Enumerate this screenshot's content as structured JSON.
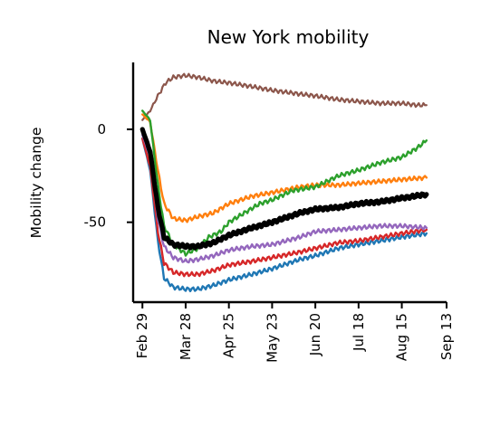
{
  "chart_data": {
    "type": "line",
    "title": "New York mobility",
    "xlabel": "",
    "ylabel": "Mobility change",
    "xlim": [
      "2020-02-23",
      "2020-09-13"
    ],
    "ylim": [
      -93,
      36
    ],
    "yticks": [
      0,
      -50
    ],
    "ytick_labels": [
      "0",
      "-50"
    ],
    "xticks": [
      "2020-02-29",
      "2020-03-28",
      "2020-04-25",
      "2020-05-23",
      "2020-06-20",
      "2020-07-18",
      "2020-08-15",
      "2020-09-13"
    ],
    "xtick_labels": [
      "Feb 29",
      "Mar 28",
      "Apr 25",
      "May 23",
      "Jun 20",
      "Jul 18",
      "Aug 15",
      "Sep 13"
    ],
    "grid": false,
    "legend": "none",
    "series": [
      {
        "color": "#8c564b",
        "width": 2.2,
        "points": [
          [
            "2020-02-29",
            5
          ],
          [
            "2020-03-05",
            10
          ],
          [
            "2020-03-10",
            18
          ],
          [
            "2020-03-15",
            25
          ],
          [
            "2020-03-20",
            28
          ],
          [
            "2020-03-28",
            29
          ],
          [
            "2020-04-05",
            28
          ],
          [
            "2020-04-15",
            26
          ],
          [
            "2020-04-25",
            25
          ],
          [
            "2020-05-10",
            23
          ],
          [
            "2020-05-23",
            21
          ],
          [
            "2020-06-10",
            19
          ],
          [
            "2020-06-20",
            18
          ],
          [
            "2020-07-05",
            16
          ],
          [
            "2020-07-18",
            15
          ],
          [
            "2020-08-01",
            14
          ],
          [
            "2020-08-15",
            14
          ],
          [
            "2020-08-25",
            13
          ],
          [
            "2020-08-31",
            13
          ]
        ]
      },
      {
        "color": "#1f77b4",
        "width": 2.4,
        "points": [
          [
            "2020-02-29",
            -5
          ],
          [
            "2020-03-05",
            -22
          ],
          [
            "2020-03-10",
            -60
          ],
          [
            "2020-03-14",
            -80
          ],
          [
            "2020-03-20",
            -85
          ],
          [
            "2020-03-28",
            -86
          ],
          [
            "2020-04-05",
            -86
          ],
          [
            "2020-04-15",
            -84
          ],
          [
            "2020-04-25",
            -81
          ],
          [
            "2020-05-10",
            -78
          ],
          [
            "2020-05-23",
            -75
          ],
          [
            "2020-06-10",
            -70
          ],
          [
            "2020-06-20",
            -68
          ],
          [
            "2020-07-05",
            -64
          ],
          [
            "2020-07-18",
            -62
          ],
          [
            "2020-08-01",
            -60
          ],
          [
            "2020-08-15",
            -58
          ],
          [
            "2020-08-31",
            -56
          ]
        ]
      },
      {
        "color": "#d62728",
        "width": 2.4,
        "points": [
          [
            "2020-02-29",
            -5
          ],
          [
            "2020-03-05",
            -20
          ],
          [
            "2020-03-10",
            -55
          ],
          [
            "2020-03-14",
            -72
          ],
          [
            "2020-03-20",
            -77
          ],
          [
            "2020-03-28",
            -78
          ],
          [
            "2020-04-05",
            -78
          ],
          [
            "2020-04-15",
            -76
          ],
          [
            "2020-04-25",
            -73
          ],
          [
            "2020-05-10",
            -71
          ],
          [
            "2020-05-23",
            -69
          ],
          [
            "2020-06-10",
            -66
          ],
          [
            "2020-06-20",
            -64
          ],
          [
            "2020-07-05",
            -61
          ],
          [
            "2020-07-18",
            -60
          ],
          [
            "2020-08-01",
            -58
          ],
          [
            "2020-08-15",
            -56
          ],
          [
            "2020-08-31",
            -54
          ]
        ]
      },
      {
        "color": "#9467bd",
        "width": 2.4,
        "points": [
          [
            "2020-02-29",
            -3
          ],
          [
            "2020-03-05",
            -15
          ],
          [
            "2020-03-10",
            -48
          ],
          [
            "2020-03-14",
            -63
          ],
          [
            "2020-03-20",
            -69
          ],
          [
            "2020-03-28",
            -71
          ],
          [
            "2020-04-05",
            -70
          ],
          [
            "2020-04-15",
            -68
          ],
          [
            "2020-04-25",
            -65
          ],
          [
            "2020-05-10",
            -63
          ],
          [
            "2020-05-23",
            -62
          ],
          [
            "2020-06-10",
            -58
          ],
          [
            "2020-06-20",
            -55
          ],
          [
            "2020-07-05",
            -54
          ],
          [
            "2020-07-18",
            -53
          ],
          [
            "2020-08-01",
            -52
          ],
          [
            "2020-08-15",
            -52
          ],
          [
            "2020-08-31",
            -53
          ]
        ]
      },
      {
        "color": "#ff7f0e",
        "width": 2.4,
        "points": [
          [
            "2020-02-29",
            8
          ],
          [
            "2020-03-05",
            4
          ],
          [
            "2020-03-10",
            -22
          ],
          [
            "2020-03-14",
            -40
          ],
          [
            "2020-03-20",
            -48
          ],
          [
            "2020-03-28",
            -49
          ],
          [
            "2020-04-05",
            -47
          ],
          [
            "2020-04-15",
            -45
          ],
          [
            "2020-04-25",
            -40
          ],
          [
            "2020-05-10",
            -36
          ],
          [
            "2020-05-23",
            -34
          ],
          [
            "2020-06-10",
            -31
          ],
          [
            "2020-06-20",
            -30
          ],
          [
            "2020-07-05",
            -30
          ],
          [
            "2020-07-18",
            -29
          ],
          [
            "2020-08-01",
            -28
          ],
          [
            "2020-08-15",
            -27
          ],
          [
            "2020-08-31",
            -26
          ]
        ]
      },
      {
        "color": "#2ca02c",
        "width": 2.4,
        "points": [
          [
            "2020-02-29",
            10
          ],
          [
            "2020-03-05",
            5
          ],
          [
            "2020-03-10",
            -30
          ],
          [
            "2020-03-14",
            -52
          ],
          [
            "2020-03-20",
            -62
          ],
          [
            "2020-03-28",
            -67
          ],
          [
            "2020-04-05",
            -64
          ],
          [
            "2020-04-12",
            -58
          ],
          [
            "2020-04-20",
            -55
          ],
          [
            "2020-04-25",
            -50
          ],
          [
            "2020-05-05",
            -45
          ],
          [
            "2020-05-15",
            -40
          ],
          [
            "2020-05-23",
            -38
          ],
          [
            "2020-06-05",
            -33
          ],
          [
            "2020-06-20",
            -31
          ],
          [
            "2020-07-05",
            -25
          ],
          [
            "2020-07-18",
            -22
          ],
          [
            "2020-08-01",
            -18
          ],
          [
            "2020-08-15",
            -15
          ],
          [
            "2020-08-25",
            -10
          ],
          [
            "2020-08-31",
            -6
          ]
        ]
      },
      {
        "color": "#000000",
        "width": 5.2,
        "points": [
          [
            "2020-02-29",
            0
          ],
          [
            "2020-03-05",
            -12
          ],
          [
            "2020-03-10",
            -42
          ],
          [
            "2020-03-14",
            -58
          ],
          [
            "2020-03-20",
            -62
          ],
          [
            "2020-03-28",
            -63
          ],
          [
            "2020-04-05",
            -63
          ],
          [
            "2020-04-15",
            -61
          ],
          [
            "2020-04-25",
            -57
          ],
          [
            "2020-05-10",
            -53
          ],
          [
            "2020-05-23",
            -50
          ],
          [
            "2020-06-10",
            -45
          ],
          [
            "2020-06-20",
            -43
          ],
          [
            "2020-07-05",
            -42
          ],
          [
            "2020-07-18",
            -40
          ],
          [
            "2020-08-01",
            -39
          ],
          [
            "2020-08-15",
            -37
          ],
          [
            "2020-08-31",
            -35
          ]
        ]
      }
    ]
  }
}
